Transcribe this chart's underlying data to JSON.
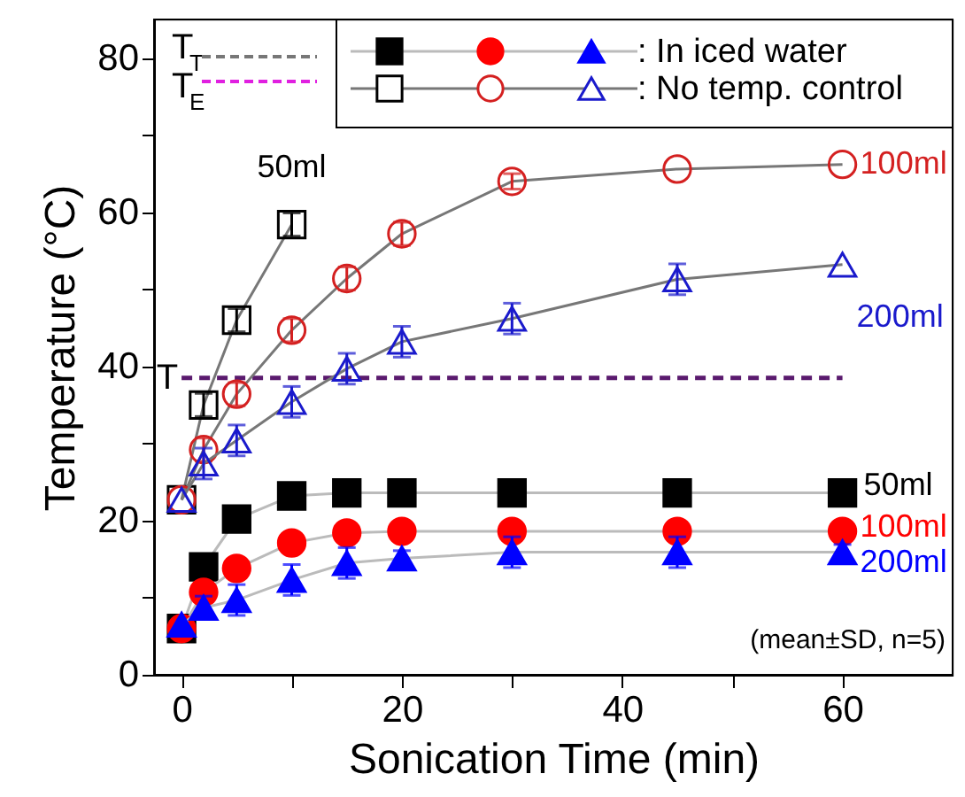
{
  "chart_data": {
    "type": "line",
    "xlabel": "Sonication Time (min)",
    "ylabel": "Temperature (°C)",
    "xlim": [
      -2.5,
      70
    ],
    "ylim": [
      0,
      85
    ],
    "xticks": [
      0,
      {
        "value": 10,
        "label": null
      },
      20,
      {
        "value": 30,
        "label": null
      },
      40,
      {
        "value": 50,
        "label": null
      },
      60
    ],
    "yticks": [
      0,
      {
        "value": 10,
        "label": null
      },
      20,
      {
        "value": 30,
        "label": null
      },
      40,
      {
        "value": 50,
        "label": null
      },
      60,
      {
        "value": 70,
        "label": null
      },
      80
    ],
    "grid": false,
    "line_style": "solid",
    "series": [
      {
        "name": "50ml",
        "color": "#000000",
        "marker": "square",
        "x": [
          0,
          2,
          5,
          10,
          15,
          20,
          30,
          45,
          60
        ],
        "values": [
          6,
          14,
          20.2,
          23.2,
          23.6,
          23.6,
          23.6,
          23.6,
          23.6
        ],
        "errors": [
          null,
          0.8,
          1,
          1,
          0.5,
          0.5,
          0.5,
          0.5,
          0.5
        ]
      },
      {
        "name": "100ml",
        "color": "#ff0000",
        "marker": "circle",
        "x": [
          0,
          2,
          5,
          10,
          15,
          20,
          30,
          45,
          60
        ],
        "values": [
          6,
          10.7,
          13.8,
          17.1,
          18.4,
          18.6,
          18.6,
          18.6,
          18.6
        ],
        "errors": [
          null,
          1,
          1,
          1,
          1,
          1,
          1,
          1,
          1
        ]
      },
      {
        "name": "200ml",
        "color": "#0000ff",
        "marker": "triangle",
        "x": [
          0,
          2,
          5,
          10,
          15,
          20,
          30,
          45,
          60
        ],
        "values": [
          6.5,
          8.7,
          9.7,
          12.3,
          14.5,
          15.1,
          15.9,
          15.9,
          15.9
        ],
        "errors": [
          null,
          1.5,
          2,
          2,
          2,
          1,
          2,
          2,
          1
        ]
      },
      {
        "name": "50ml",
        "color": "#000000",
        "marker": "square",
        "x": [
          0,
          2,
          5,
          10
        ],
        "values": [
          22.7,
          35,
          46,
          58.4
        ],
        "errors": [
          null,
          1.5,
          1.5,
          1.5
        ]
      },
      {
        "name": "100ml",
        "color": "#d42020",
        "marker": "circle",
        "x": [
          0,
          2,
          5,
          10,
          15,
          20,
          30,
          45,
          60
        ],
        "values": [
          22.7,
          29.2,
          36.4,
          44.7,
          51.4,
          57.2,
          64,
          65.6,
          66.2
        ],
        "errors": [
          null,
          1.5,
          1.5,
          1.5,
          1.5,
          1.5,
          1,
          null,
          null
        ]
      },
      {
        "name": "200ml",
        "color": "#1a1acc",
        "marker": "triangle",
        "x": [
          0,
          2,
          5,
          10,
          15,
          20,
          30,
          45,
          60
        ],
        "values": [
          22.7,
          27.4,
          30.4,
          35.4,
          39.7,
          43.2,
          46.2,
          51.3,
          53.2
        ],
        "errors": [
          null,
          2,
          2,
          2,
          2,
          2,
          2,
          2,
          null
        ]
      }
    ],
    "ref_lines": [
      {
        "axis": "y",
        "value": 38.5,
        "label": "T",
        "color": "#5a1a6e",
        "line_style": "dashed"
      }
    ],
    "annotations": [
      ": In iced water",
      ": No temp. control",
      "(mean±SD, n=5)",
      "T$_{T}$",
      "T$_{E}$"
    ]
  }
}
